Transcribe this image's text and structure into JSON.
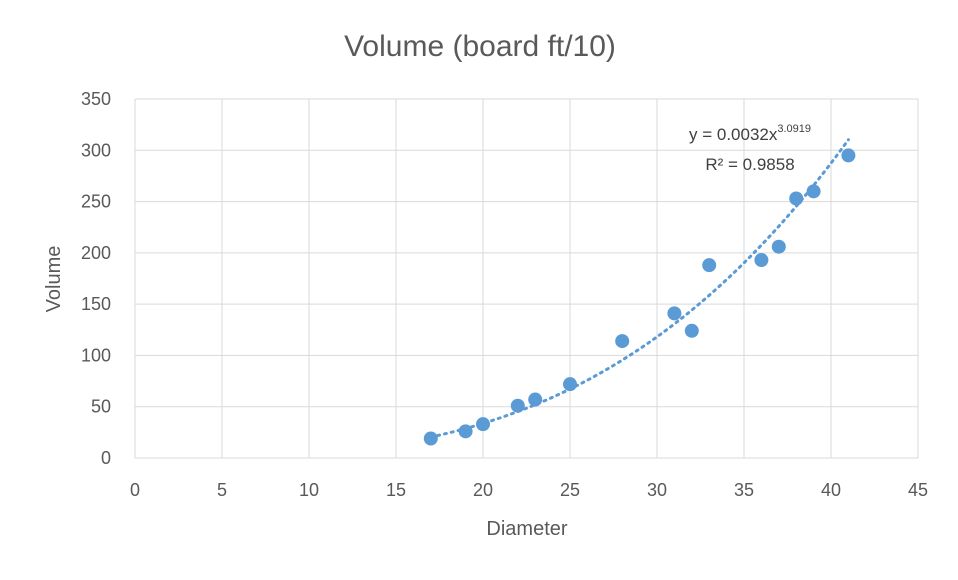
{
  "chart_data": {
    "type": "scatter",
    "title": "Volume (board ft/10)",
    "xlabel": "Diameter",
    "ylabel": "Volume",
    "xlim": [
      0,
      45
    ],
    "ylim": [
      0,
      350
    ],
    "x_ticks": [
      "0",
      "5",
      "10",
      "15",
      "20",
      "25",
      "30",
      "35",
      "40",
      "45"
    ],
    "y_ticks": [
      "0",
      "50",
      "100",
      "150",
      "200",
      "250",
      "300",
      "350"
    ],
    "grid": true,
    "legend": "none",
    "series": [
      {
        "color": "#5b9bd5",
        "points": [
          {
            "x": 17,
            "y": 19
          },
          {
            "x": 19,
            "y": 26
          },
          {
            "x": 20,
            "y": 33
          },
          {
            "x": 22,
            "y": 51
          },
          {
            "x": 23,
            "y": 57
          },
          {
            "x": 25,
            "y": 72
          },
          {
            "x": 28,
            "y": 114
          },
          {
            "x": 31,
            "y": 141
          },
          {
            "x": 32,
            "y": 124
          },
          {
            "x": 33,
            "y": 188
          },
          {
            "x": 36,
            "y": 193
          },
          {
            "x": 37,
            "y": 206
          },
          {
            "x": 38,
            "y": 253
          },
          {
            "x": 39,
            "y": 260
          },
          {
            "x": 41,
            "y": 295
          }
        ]
      }
    ],
    "trendline": {
      "type": "power",
      "coefficient": 0.0032,
      "exponent": 3.0919,
      "x_range": [
        17,
        41
      ],
      "equation_prefix": "y = 0.0032x",
      "equation_exponent": "3.0919",
      "r_squared": "R² = 0.9858",
      "color": "#5b9bd5"
    },
    "colors": {
      "grid": "#d9d9d9",
      "text": "#595959"
    }
  }
}
